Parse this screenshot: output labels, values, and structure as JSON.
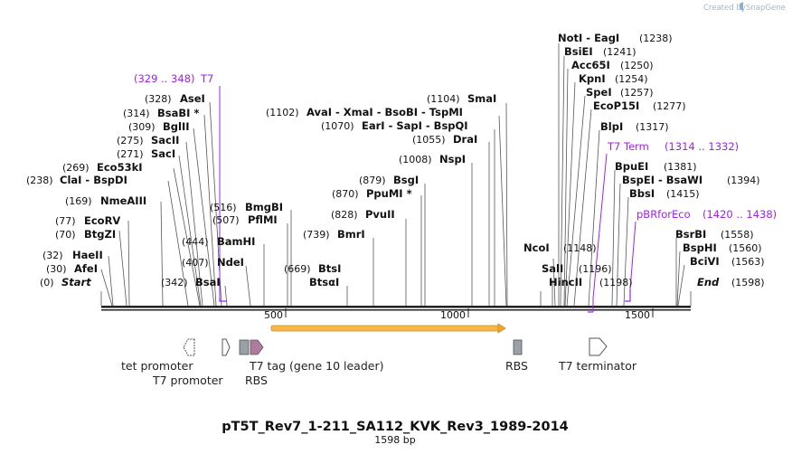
{
  "brand": {
    "created_by": "Created by",
    "name": "SnapGene"
  },
  "map": {
    "title": "pT5T_Rev7_1-211_SA112_KVK_Rev3_1989-2014",
    "length_label": "1598 bp",
    "total_bp": 1598,
    "ticks": [
      {
        "value": 500,
        "label": "500"
      },
      {
        "value": 1000,
        "label": "1000"
      },
      {
        "value": 1500,
        "label": "1500"
      }
    ]
  },
  "enzymes": [
    {
      "pos": "(0)",
      "name": "Start",
      "italic": true
    },
    {
      "pos": "(30)",
      "name": "AfeI"
    },
    {
      "pos": "(32)",
      "name": "HaeII"
    },
    {
      "pos": "(70)",
      "name": "BtgZI"
    },
    {
      "pos": "(77)",
      "name": "EcoRV"
    },
    {
      "pos": "(169)",
      "name": "NmeAIII"
    },
    {
      "pos": "(238)",
      "name": "ClaI - BspDI"
    },
    {
      "pos": "(269)",
      "name": "Eco53kI"
    },
    {
      "pos": "(271)",
      "name": "SacI"
    },
    {
      "pos": "(275)",
      "name": "SacII"
    },
    {
      "pos": "(309)",
      "name": "BglII"
    },
    {
      "pos": "(314)",
      "name": "BsaBI *"
    },
    {
      "pos": "(328)",
      "name": "AseI"
    },
    {
      "pos": "(342)",
      "name": "BsaI"
    },
    {
      "pos": "(407)",
      "name": "NdeI"
    },
    {
      "pos": "(444)",
      "name": "BamHI"
    },
    {
      "pos": "(507)",
      "name": "PflMI"
    },
    {
      "pos": "(516)",
      "name": "BmgBI"
    },
    {
      "pos": "(669)",
      "name": "BtsI"
    },
    {
      "pos": "",
      "name": "BtsαI"
    },
    {
      "pos": "(739)",
      "name": "BmrI"
    },
    {
      "pos": "(828)",
      "name": "PvuII"
    },
    {
      "pos": "(870)",
      "name": "PpuMI *"
    },
    {
      "pos": "(879)",
      "name": "BsgI"
    },
    {
      "pos": "(1008)",
      "name": "NspI"
    },
    {
      "pos": "(1055)",
      "name": "DraI"
    },
    {
      "pos": "(1070)",
      "name": "EarI - SapI - BspQI"
    },
    {
      "pos": "(1102)",
      "name": "AvaI - XmaI - BsoBI - TspMI"
    },
    {
      "pos": "(1104)",
      "name": "SmaI"
    },
    {
      "pos": "",
      "name": "NcoI"
    },
    {
      "pos": "(1148)",
      "name": ""
    },
    {
      "pos": "",
      "name": "SalI"
    },
    {
      "pos": "(1196)",
      "name": ""
    },
    {
      "pos": "",
      "name": "HincII"
    },
    {
      "pos": "(1198)",
      "name": ""
    },
    {
      "pos": "(1238)",
      "name": "NotI - EagI"
    },
    {
      "pos": "(1241)",
      "name": "BsiEI"
    },
    {
      "pos": "(1250)",
      "name": "Acc65I"
    },
    {
      "pos": "(1254)",
      "name": "KpnI"
    },
    {
      "pos": "(1257)",
      "name": "SpeI"
    },
    {
      "pos": "(1277)",
      "name": "EcoP15I"
    },
    {
      "pos": "(1317)",
      "name": "BlpI"
    },
    {
      "pos": "(1381)",
      "name": "BpuEI"
    },
    {
      "pos": "(1394)",
      "name": "BspEI - BsaWI"
    },
    {
      "pos": "(1415)",
      "name": "BbsI"
    },
    {
      "pos": "(1558)",
      "name": "BsrBI"
    },
    {
      "pos": "(1560)",
      "name": "BspHI"
    },
    {
      "pos": "(1563)",
      "name": "BciVI"
    },
    {
      "pos": "(1598)",
      "name": "End",
      "italic": true
    }
  ],
  "primers": [
    {
      "range": "(329 .. 348)",
      "name": "T7"
    },
    {
      "range": "(1314 .. 1332)",
      "name": "T7 Term"
    },
    {
      "range": "(1420 .. 1438)",
      "name": "pBRforEco"
    }
  ],
  "features": [
    {
      "name": "tet promoter"
    },
    {
      "name": "T7 promoter"
    },
    {
      "name": "T7 tag (gene 10 leader)"
    },
    {
      "name": "RBS"
    },
    {
      "name": "RBS"
    },
    {
      "name": "T7 terminator"
    }
  ],
  "colors": {
    "backbone": "#222222",
    "orf": "#f0a830",
    "primer": "#a020f0",
    "rbs": "#9aa0a6",
    "t7tag": "#b07aa0",
    "brand": "#aab4c0"
  }
}
